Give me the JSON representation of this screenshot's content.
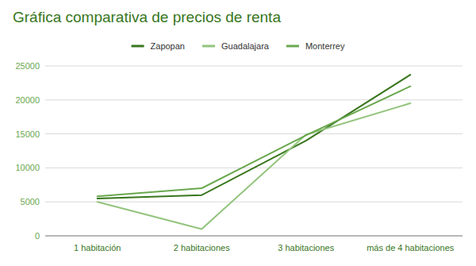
{
  "chart_data": {
    "type": "line",
    "title": "Gráfica comparativa de precios de renta",
    "categories": [
      "1 habitación",
      "2 habitaciones",
      "3 habitaciones",
      "más de 4 habitaciones"
    ],
    "series": [
      {
        "name": "Zapopan",
        "color": "#38761d",
        "values": [
          5500,
          6000,
          14000,
          23700
        ]
      },
      {
        "name": "Guadalajara",
        "color": "#93c47d",
        "values": [
          5000,
          1000,
          14900,
          19500
        ]
      },
      {
        "name": "Monterrey",
        "color": "#6aa84f",
        "values": [
          5800,
          7000,
          14800,
          22000
        ]
      }
    ],
    "ylim": [
      0,
      25000
    ],
    "yticks": [
      0,
      5000,
      10000,
      15000,
      20000,
      25000
    ],
    "grid": true,
    "legend": "top"
  }
}
